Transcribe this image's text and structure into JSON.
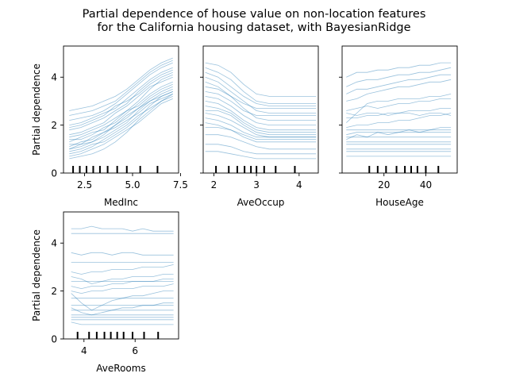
{
  "title_line1": "Partial dependence of house value on non-location features",
  "title_line2": "for the California housing dataset, with BayesianRidge",
  "line_color": "#1f77b4",
  "chart_data": [
    {
      "type": "line",
      "feature": "MedInc",
      "xlabel": "MedInc",
      "ylabel": "Partial dependence",
      "xlim": [
        1.4,
        7.4
      ],
      "ylim": [
        0,
        5.3
      ],
      "xticks": [
        2.5,
        5.0,
        7.5
      ],
      "xtick_labels": [
        "2.5",
        "5.0",
        "7.5"
      ],
      "yticks": [
        0,
        2,
        4
      ],
      "ytick_labels": [
        "0",
        "2",
        "4"
      ],
      "deciles": [
        1.9,
        2.25,
        2.6,
        2.95,
        3.3,
        3.7,
        4.2,
        4.7,
        5.4,
        6.3
      ],
      "x": [
        1.7,
        2.3,
        2.9,
        3.5,
        4.1,
        4.7,
        5.3,
        5.9,
        6.5,
        7.1
      ],
      "ice_curves": [
        [
          1.0,
          1.1,
          1.3,
          1.5,
          1.8,
          2.1,
          2.6,
          3.0,
          3.3,
          3.5
        ],
        [
          1.5,
          1.6,
          1.8,
          2.0,
          2.3,
          2.6,
          3.0,
          3.5,
          3.9,
          4.1
        ],
        [
          0.6,
          0.7,
          0.8,
          1.0,
          1.3,
          1.7,
          2.2,
          2.6,
          3.0,
          3.2
        ],
        [
          2.2,
          2.3,
          2.4,
          2.6,
          2.9,
          3.3,
          3.7,
          4.1,
          4.4,
          4.6
        ],
        [
          1.2,
          1.2,
          1.3,
          1.6,
          2.0,
          2.4,
          2.7,
          3.1,
          3.4,
          3.6
        ],
        [
          1.8,
          1.9,
          2.1,
          2.3,
          2.6,
          2.9,
          3.4,
          3.8,
          4.1,
          4.3
        ],
        [
          0.9,
          1.0,
          1.2,
          1.3,
          1.6,
          1.9,
          2.3,
          2.8,
          3.2,
          3.4
        ],
        [
          1.4,
          1.4,
          1.6,
          1.9,
          2.1,
          2.5,
          2.9,
          3.3,
          3.6,
          3.8
        ],
        [
          2.6,
          2.7,
          2.8,
          3.0,
          3.2,
          3.5,
          3.9,
          4.3,
          4.6,
          4.8
        ],
        [
          1.1,
          1.3,
          1.4,
          1.7,
          1.9,
          2.2,
          2.5,
          2.9,
          3.1,
          3.3
        ],
        [
          0.7,
          0.8,
          1.0,
          1.2,
          1.5,
          1.8,
          2.1,
          2.5,
          2.9,
          3.1
        ],
        [
          1.6,
          1.7,
          1.9,
          2.1,
          2.5,
          2.8,
          3.2,
          3.6,
          3.8,
          4.0
        ],
        [
          2.0,
          2.1,
          2.3,
          2.5,
          2.7,
          3.1,
          3.5,
          3.9,
          4.2,
          4.4
        ],
        [
          1.3,
          1.5,
          1.7,
          1.8,
          2.2,
          2.6,
          2.8,
          3.2,
          3.5,
          3.7
        ],
        [
          0.8,
          0.9,
          1.1,
          1.4,
          1.7,
          2.0,
          2.4,
          2.7,
          3.0,
          3.3
        ],
        [
          1.9,
          2.0,
          2.2,
          2.4,
          2.8,
          3.0,
          3.3,
          3.7,
          4.0,
          4.2
        ],
        [
          2.4,
          2.5,
          2.6,
          2.8,
          3.0,
          3.4,
          3.8,
          4.2,
          4.5,
          4.7
        ],
        [
          1.0,
          1.2,
          1.5,
          1.7,
          2.0,
          2.3,
          2.7,
          3.0,
          3.2,
          3.4
        ]
      ]
    },
    {
      "type": "line",
      "feature": "AveOccup",
      "xlabel": "AveOccup",
      "ylabel": "",
      "xlim": [
        1.75,
        4.45
      ],
      "ylim": [
        0,
        5.3
      ],
      "xticks": [
        2,
        3,
        4
      ],
      "xtick_labels": [
        "2",
        "3",
        "4"
      ],
      "yticks": [
        0,
        2,
        4
      ],
      "ytick_labels": [
        "",
        "",
        ""
      ],
      "deciles": [
        2.05,
        2.35,
        2.55,
        2.72,
        2.87,
        3.0,
        3.18,
        3.45,
        3.9
      ],
      "x": [
        1.8,
        2.1,
        2.4,
        2.7,
        3.0,
        3.3,
        3.6,
        3.9,
        4.2,
        4.4
      ],
      "ice_curves": [
        [
          4.2,
          4.0,
          3.6,
          3.2,
          2.9,
          2.8,
          2.8,
          2.8,
          2.8,
          2.8
        ],
        [
          3.8,
          3.6,
          3.2,
          2.7,
          2.3,
          2.2,
          2.2,
          2.2,
          2.2,
          2.2
        ],
        [
          3.0,
          2.9,
          2.6,
          2.2,
          1.9,
          1.8,
          1.8,
          1.8,
          1.8,
          1.8
        ],
        [
          2.5,
          2.4,
          2.2,
          1.9,
          1.6,
          1.5,
          1.5,
          1.5,
          1.5,
          1.5
        ],
        [
          4.6,
          4.5,
          4.2,
          3.7,
          3.3,
          3.2,
          3.2,
          3.2,
          3.2,
          3.2
        ],
        [
          2.1,
          2.0,
          1.8,
          1.5,
          1.3,
          1.3,
          1.3,
          1.3,
          1.3,
          1.3
        ],
        [
          1.6,
          1.6,
          1.5,
          1.3,
          1.1,
          1.0,
          1.0,
          1.0,
          1.0,
          1.0
        ],
        [
          3.4,
          3.3,
          3.0,
          2.6,
          2.4,
          2.4,
          2.4,
          2.4,
          2.4,
          2.4
        ],
        [
          1.2,
          1.2,
          1.1,
          0.9,
          0.8,
          0.8,
          0.8,
          0.8,
          0.8,
          0.8
        ],
        [
          4.0,
          3.8,
          3.4,
          3.0,
          2.6,
          2.5,
          2.5,
          2.5,
          2.5,
          2.5
        ],
        [
          2.8,
          2.7,
          2.5,
          2.1,
          1.8,
          1.7,
          1.7,
          1.7,
          1.7,
          1.7
        ],
        [
          1.9,
          1.9,
          1.8,
          1.6,
          1.4,
          1.4,
          1.4,
          1.4,
          1.4,
          1.4
        ],
        [
          3.6,
          3.5,
          3.2,
          2.9,
          2.7,
          2.7,
          2.7,
          2.7,
          2.7,
          2.7
        ],
        [
          2.3,
          2.2,
          2.0,
          1.7,
          1.5,
          1.5,
          1.5,
          1.5,
          1.5,
          1.5
        ],
        [
          0.9,
          0.9,
          0.8,
          0.7,
          0.6,
          0.6,
          0.6,
          0.6,
          0.6,
          0.6
        ],
        [
          4.4,
          4.2,
          3.9,
          3.4,
          3.0,
          2.9,
          2.9,
          2.9,
          2.9,
          2.9
        ],
        [
          2.6,
          2.6,
          2.4,
          2.0,
          1.7,
          1.6,
          1.6,
          1.6,
          1.6,
          1.6
        ],
        [
          3.2,
          3.1,
          2.8,
          2.4,
          2.1,
          2.0,
          2.0,
          2.0,
          2.0,
          2.0
        ]
      ]
    },
    {
      "type": "line",
      "feature": "HouseAge",
      "xlabel": "HouseAge",
      "ylabel": "",
      "xlim": [
        0,
        55
      ],
      "ylim": [
        0,
        5.3
      ],
      "xticks": [
        20,
        40
      ],
      "xtick_labels": [
        "20",
        "40"
      ],
      "yticks": [
        0,
        2,
        4
      ],
      "ytick_labels": [
        "",
        "",
        ""
      ],
      "deciles": [
        13,
        17,
        21,
        26,
        30,
        33,
        36,
        40,
        46
      ],
      "x": [
        2,
        7,
        12,
        17,
        22,
        27,
        32,
        37,
        42,
        47,
        52
      ],
      "ice_curves": [
        [
          3.6,
          3.8,
          3.9,
          3.9,
          4.0,
          4.1,
          4.1,
          4.2,
          4.2,
          4.3,
          4.4
        ],
        [
          2.1,
          2.5,
          2.9,
          3.0,
          3.0,
          3.1,
          3.1,
          3.1,
          3.2,
          3.2,
          3.3
        ],
        [
          1.6,
          1.7,
          1.7,
          1.7,
          1.7,
          1.7,
          1.7,
          1.7,
          1.7,
          1.7,
          1.7
        ],
        [
          1.3,
          1.3,
          1.3,
          1.3,
          1.3,
          1.3,
          1.3,
          1.3,
          1.3,
          1.3,
          1.3
        ],
        [
          0.7,
          0.7,
          0.7,
          0.7,
          0.7,
          0.7,
          0.7,
          0.7,
          0.7,
          0.7,
          0.7
        ],
        [
          2.6,
          2.7,
          2.8,
          2.7,
          2.8,
          2.9,
          2.9,
          3.0,
          3.0,
          3.1,
          3.1
        ],
        [
          1.9,
          2.0,
          2.0,
          2.1,
          2.1,
          2.2,
          2.2,
          2.3,
          2.4,
          2.4,
          2.5
        ],
        [
          1.0,
          1.0,
          1.0,
          1.0,
          1.0,
          1.0,
          1.0,
          1.0,
          1.0,
          1.0,
          1.0
        ],
        [
          3.0,
          3.1,
          3.3,
          3.4,
          3.5,
          3.6,
          3.6,
          3.7,
          3.8,
          3.8,
          3.9
        ],
        [
          1.5,
          1.5,
          1.5,
          1.5,
          1.5,
          1.5,
          1.5,
          1.5,
          1.5,
          1.5,
          1.5
        ],
        [
          2.3,
          2.3,
          2.4,
          2.4,
          2.5,
          2.5,
          2.6,
          2.6,
          2.6,
          2.7,
          2.7
        ],
        [
          1.8,
          1.8,
          1.8,
          1.8,
          1.8,
          1.8,
          1.8,
          1.8,
          1.8,
          1.8,
          1.8
        ],
        [
          1.2,
          1.2,
          1.2,
          1.2,
          1.2,
          1.2,
          1.2,
          1.2,
          1.2,
          1.2,
          1.2
        ],
        [
          3.3,
          3.5,
          3.5,
          3.6,
          3.7,
          3.8,
          3.9,
          3.9,
          4.0,
          4.1,
          4.1
        ],
        [
          0.9,
          0.9,
          0.9,
          0.9,
          0.9,
          0.9,
          0.9,
          0.9,
          0.9,
          0.9,
          0.9
        ],
        [
          2.5,
          2.4,
          2.5,
          2.5,
          2.4,
          2.5,
          2.5,
          2.4,
          2.5,
          2.5,
          2.4
        ],
        [
          1.4,
          1.6,
          1.5,
          1.7,
          1.6,
          1.7,
          1.8,
          1.7,
          1.8,
          1.9,
          1.9
        ],
        [
          4.0,
          4.2,
          4.2,
          4.3,
          4.3,
          4.4,
          4.4,
          4.5,
          4.5,
          4.6,
          4.6
        ]
      ]
    },
    {
      "type": "line",
      "feature": "AveRooms",
      "xlabel": "AveRooms",
      "ylabel": "Partial dependence",
      "xlim": [
        3.2,
        7.7
      ],
      "ylim": [
        0,
        5.3
      ],
      "xticks": [
        4,
        6
      ],
      "xtick_labels": [
        "4",
        "6"
      ],
      "yticks": [
        0,
        2,
        4
      ],
      "ytick_labels": [
        "0",
        "2",
        "4"
      ],
      "deciles": [
        3.75,
        4.2,
        4.5,
        4.8,
        5.05,
        5.3,
        5.55,
        5.9,
        6.35,
        6.9
      ],
      "x": [
        3.5,
        3.9,
        4.3,
        4.7,
        5.1,
        5.5,
        5.9,
        6.3,
        6.7,
        7.1,
        7.5
      ],
      "ice_curves": [
        [
          4.6,
          4.6,
          4.7,
          4.6,
          4.6,
          4.6,
          4.5,
          4.6,
          4.5,
          4.5,
          4.5
        ],
        [
          4.4,
          4.4,
          4.4,
          4.4,
          4.4,
          4.4,
          4.4,
          4.4,
          4.4,
          4.4,
          4.4
        ],
        [
          3.6,
          3.5,
          3.6,
          3.6,
          3.5,
          3.6,
          3.6,
          3.5,
          3.5,
          3.5,
          3.5
        ],
        [
          3.2,
          3.2,
          3.2,
          3.2,
          3.2,
          3.2,
          3.2,
          3.2,
          3.2,
          3.2,
          3.2
        ],
        [
          2.6,
          2.5,
          2.3,
          2.4,
          2.5,
          2.5,
          2.6,
          2.6,
          2.6,
          2.7,
          2.7
        ],
        [
          2.2,
          2.1,
          2.2,
          2.2,
          2.3,
          2.3,
          2.4,
          2.4,
          2.4,
          2.5,
          2.5
        ],
        [
          1.9,
          1.5,
          1.2,
          1.4,
          1.6,
          1.7,
          1.8,
          1.8,
          1.9,
          2.0,
          2.0
        ],
        [
          1.7,
          1.7,
          1.7,
          1.7,
          1.7,
          1.7,
          1.7,
          1.7,
          1.7,
          1.7,
          1.7
        ],
        [
          1.4,
          1.4,
          1.4,
          1.4,
          1.4,
          1.4,
          1.4,
          1.4,
          1.4,
          1.4,
          1.4
        ],
        [
          1.2,
          1.2,
          1.2,
          1.2,
          1.2,
          1.2,
          1.2,
          1.2,
          1.2,
          1.2,
          1.2
        ],
        [
          1.0,
          1.0,
          1.0,
          1.0,
          1.0,
          1.0,
          1.0,
          1.0,
          1.0,
          1.0,
          1.0
        ],
        [
          0.9,
          0.9,
          0.9,
          0.9,
          0.9,
          0.9,
          0.9,
          0.9,
          0.9,
          0.9,
          0.9
        ],
        [
          0.7,
          0.6,
          0.6,
          0.6,
          0.6,
          0.6,
          0.6,
          0.6,
          0.6,
          0.6,
          0.6
        ],
        [
          2.0,
          1.9,
          2.0,
          2.0,
          2.1,
          2.1,
          2.1,
          2.2,
          2.2,
          2.2,
          2.3
        ],
        [
          2.8,
          2.7,
          2.8,
          2.8,
          2.9,
          2.9,
          2.9,
          3.0,
          3.0,
          3.0,
          3.1
        ],
        [
          1.3,
          1.1,
          1.0,
          1.1,
          1.2,
          1.3,
          1.3,
          1.4,
          1.4,
          1.5,
          1.5
        ],
        [
          0.8,
          0.8,
          0.8,
          0.8,
          0.8,
          0.8,
          0.8,
          0.8,
          0.8,
          0.8,
          0.8
        ],
        [
          2.4,
          2.4,
          2.4,
          2.4,
          2.4,
          2.4,
          2.4,
          2.4,
          2.4,
          2.4,
          2.4
        ]
      ]
    }
  ]
}
